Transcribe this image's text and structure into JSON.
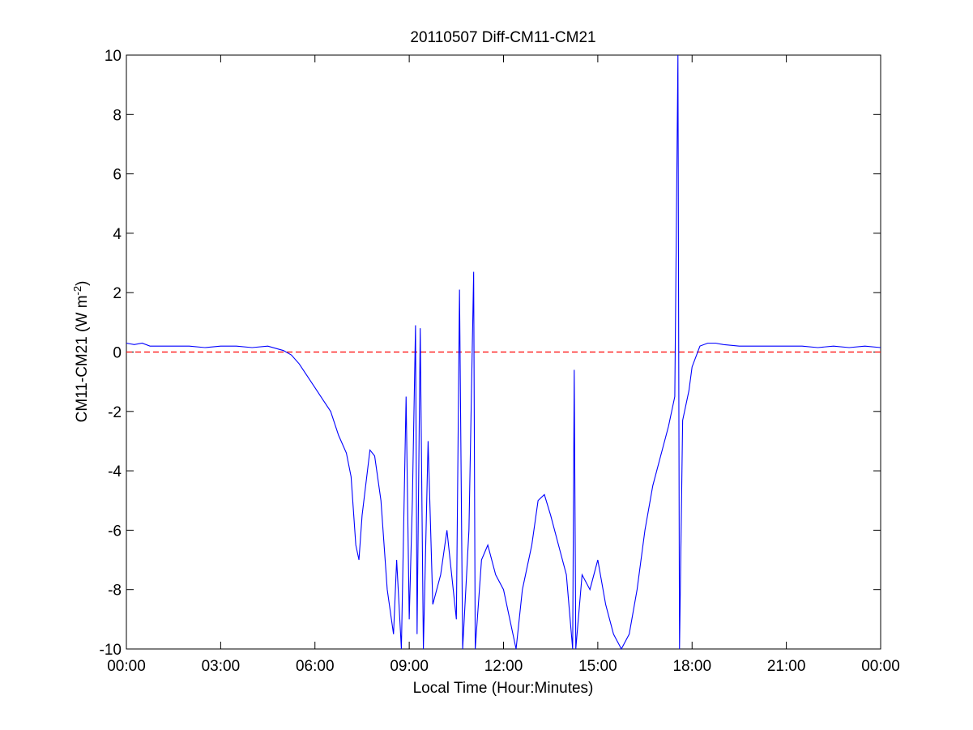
{
  "chart_data": {
    "type": "line",
    "title": "20110507 Diff-CM11-CM21",
    "xlabel": "Local Time (Hour:Minutes)",
    "ylabel": [
      "CM11-CM21 (W m",
      "-2",
      ")"
    ],
    "x": [
      0,
      0.25,
      0.5,
      0.75,
      1,
      1.5,
      2,
      2.5,
      3,
      3.5,
      4,
      4.5,
      5,
      5.25,
      5.5,
      5.75,
      6,
      6.25,
      6.5,
      6.75,
      7,
      7.15,
      7.3,
      7.4,
      7.5,
      7.75,
      7.9,
      8.1,
      8.3,
      8.5,
      8.6,
      8.75,
      8.9,
      9,
      9.1,
      9.2,
      9.25,
      9.35,
      9.45,
      9.6,
      9.75,
      10,
      10.2,
      10.4,
      10.5,
      10.6,
      10.7,
      10.9,
      11.05,
      11.1,
      11.3,
      11.5,
      11.75,
      12,
      12.2,
      12.4,
      12.6,
      12.9,
      13.1,
      13.3,
      13.5,
      13.75,
      14,
      14.2,
      14.25,
      14.3,
      14.5,
      14.75,
      15,
      15.25,
      15.5,
      15.75,
      16,
      16.25,
      16.5,
      16.75,
      17,
      17.25,
      17.45,
      17.55,
      17.6,
      17.7,
      17.9,
      18,
      18.25,
      18.5,
      18.75,
      19,
      19.5,
      20,
      20.5,
      21,
      21.5,
      22,
      22.5,
      23,
      23.5,
      24
    ],
    "series": [
      {
        "name": "Diff",
        "color": "#0000ff",
        "values": [
          0.3,
          0.25,
          0.3,
          0.2,
          0.2,
          0.2,
          0.2,
          0.15,
          0.2,
          0.2,
          0.15,
          0.2,
          0.05,
          -0.1,
          -0.4,
          -0.8,
          -1.2,
          -1.6,
          -2.0,
          -2.8,
          -3.4,
          -4.2,
          -6.5,
          -7.0,
          -5.5,
          -3.3,
          -3.5,
          -5.0,
          -8.0,
          -9.5,
          -7.0,
          -10,
          -1.5,
          -9,
          -5,
          0.9,
          -9.5,
          0.8,
          -10,
          -3,
          -8.5,
          -7.5,
          -6,
          -8,
          -9,
          2.1,
          -10,
          -6,
          2.7,
          -10,
          -7,
          -6.5,
          -7.5,
          -8,
          -9,
          -10,
          -8,
          -6.5,
          -5,
          -4.8,
          -5.5,
          -6.5,
          -7.5,
          -10,
          -0.6,
          -10,
          -7.5,
          -8,
          -7,
          -8.5,
          -9.5,
          -10,
          -9.5,
          -8,
          -6,
          -4.5,
          -3.5,
          -2.5,
          -1.5,
          10,
          -10,
          -2.3,
          -1.3,
          -0.5,
          0.2,
          0.3,
          0.3,
          0.25,
          0.2,
          0.2,
          0.2,
          0.2,
          0.2,
          0.15,
          0.2,
          0.15,
          0.2,
          0.15
        ]
      }
    ],
    "reference_line": {
      "value": 0,
      "color": "#ff0000"
    },
    "xlim": [
      0,
      24
    ],
    "xticks": [
      {
        "value": 0,
        "label": "00:00"
      },
      {
        "value": 3,
        "label": "03:00"
      },
      {
        "value": 6,
        "label": "06:00"
      },
      {
        "value": 9,
        "label": "09:00"
      },
      {
        "value": 12,
        "label": "12:00"
      },
      {
        "value": 15,
        "label": "15:00"
      },
      {
        "value": 18,
        "label": "18:00"
      },
      {
        "value": 21,
        "label": "21:00"
      },
      {
        "value": 24,
        "label": "00:00"
      }
    ],
    "ylim": [
      -10,
      10
    ],
    "yticks": [
      -10,
      -8,
      -6,
      -4,
      -2,
      0,
      2,
      4,
      6,
      8,
      10
    ]
  }
}
